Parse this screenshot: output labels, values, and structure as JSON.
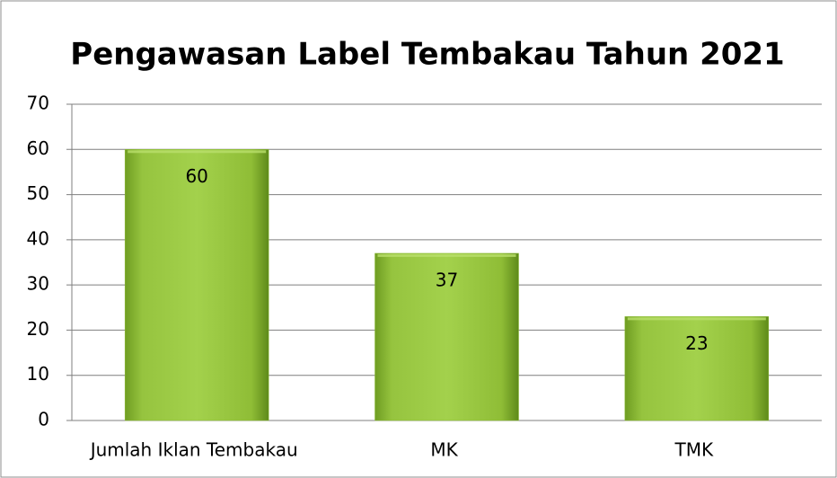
{
  "chart_data": {
    "type": "bar",
    "title": "Pengawasan Label Tembakau Tahun 2021",
    "categories": [
      "Jumlah Iklan Tembakau",
      "MK",
      "TMK"
    ],
    "values": [
      60,
      37,
      23
    ],
    "color": "#8cbb34",
    "ylim": [
      0,
      70
    ],
    "yticks": [
      0,
      10,
      20,
      30,
      40,
      50,
      60,
      70
    ],
    "grid": true
  }
}
